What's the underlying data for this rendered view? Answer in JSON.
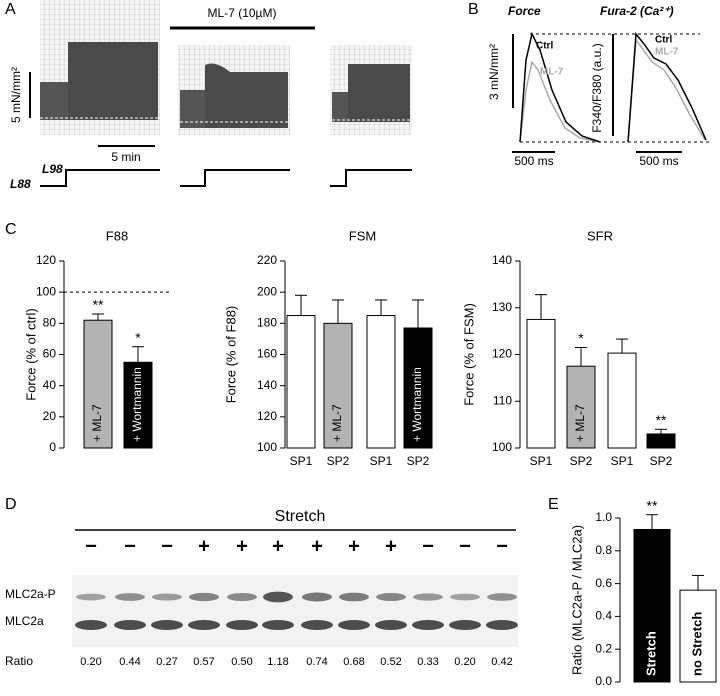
{
  "panel_labels": [
    "A",
    "B",
    "C",
    "D",
    "E"
  ],
  "panel_a": {
    "drug": "ML-7 (10µM)",
    "force_scale": "5 mN/mm²",
    "time_scale": "5 min",
    "length_high": "L98",
    "length_low": "L88"
  },
  "panel_b": {
    "force_title": "Force",
    "fura_title": "Fura-2 (Ca²⁺)",
    "ctrl": "Ctrl",
    "ml7": "ML-7",
    "force_scale": "3 mN/mm²",
    "fura_axis": "F340/F380 (a.u.)",
    "time_scale": "500 ms"
  },
  "panel_d": {
    "stretch": "Stretch",
    "signs": [
      "−",
      "−",
      "−",
      "+",
      "+",
      "+",
      "+",
      "+",
      "+",
      "−",
      "−",
      "−"
    ],
    "rows": [
      "MLC2a-P",
      "MLC2a",
      "Ratio"
    ],
    "ratios": [
      "0.20",
      "0.44",
      "0.27",
      "0.57",
      "0.50",
      "1.18",
      "0.74",
      "0.68",
      "0.52",
      "0.33",
      "0.20",
      "0.42"
    ]
  },
  "chart_data": [
    {
      "type": "bar",
      "title": "F88",
      "ylabel": "Force (% of ctrl)",
      "ylim": [
        0,
        120
      ],
      "yticks": [
        0,
        20,
        40,
        60,
        80,
        100,
        120
      ],
      "bar_labels": [
        "+ ML-7",
        "+ Wortmannin"
      ],
      "values": [
        82,
        55
      ],
      "errors": [
        4,
        10
      ],
      "colors": [
        "#b3b3b3",
        "#000000"
      ],
      "annotations": [
        "**",
        "*"
      ],
      "reference_line": 100
    },
    {
      "type": "bar",
      "title": "FSM",
      "ylabel": "Force (% of F88)",
      "ylim": [
        100,
        220
      ],
      "yticks": [
        100,
        120,
        140,
        160,
        180,
        200,
        220
      ],
      "categories": [
        "SP1",
        "SP2",
        "SP1",
        "SP2"
      ],
      "bar_labels": [
        null,
        "+ ML-7",
        null,
        "+ Wortmannin"
      ],
      "values": [
        185,
        180,
        185,
        177
      ],
      "errors": [
        13,
        15,
        10,
        18
      ],
      "colors": [
        "#ffffff",
        "#b3b3b3",
        "#ffffff",
        "#000000"
      ]
    },
    {
      "type": "bar",
      "title": "SFR",
      "ylabel": "Force (% of FSM)",
      "ylim": [
        100,
        140
      ],
      "yticks": [
        100,
        110,
        120,
        130,
        140
      ],
      "categories": [
        "SP1",
        "SP2",
        "SP1",
        "SP2"
      ],
      "bar_labels": [
        null,
        "+ ML-7",
        null,
        null
      ],
      "values": [
        127.5,
        117.5,
        120.3,
        103
      ],
      "errors": [
        5.3,
        4,
        3,
        1
      ],
      "colors": [
        "#ffffff",
        "#b3b3b3",
        "#ffffff",
        "#000000"
      ],
      "annotations": [
        null,
        "*",
        null,
        "**"
      ]
    },
    {
      "type": "bar",
      "ylabel": "Ratio (MLC2a-P / MLC2a)",
      "ylim": [
        0,
        1
      ],
      "yticks": [
        {
          "value": 0,
          "label": "0.0"
        },
        {
          "value": 0.2,
          "label": "0.2"
        },
        {
          "value": 0.4,
          "label": "0.4"
        },
        {
          "value": 0.6,
          "label": "0.6"
        },
        {
          "value": 0.8,
          "label": "0.8"
        },
        {
          "value": 1,
          "label": "1.0"
        }
      ],
      "bar_labels": [
        "Stretch",
        "no Stretch"
      ],
      "values": [
        0.93,
        0.56
      ],
      "errors": [
        0.09,
        0.09
      ],
      "colors": [
        "#000000",
        "#ffffff"
      ],
      "annotations": [
        "**",
        null
      ]
    }
  ]
}
